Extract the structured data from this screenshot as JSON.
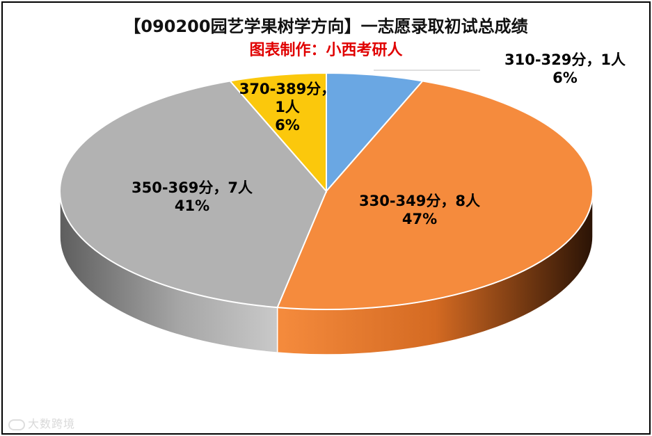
{
  "chart_data": {
    "type": "pie",
    "title": "【090200园艺学果树学方向】一志愿录取初试总成绩",
    "subtitle": "图表制作：小西考研人",
    "slices": [
      {
        "category": "310-329分",
        "count": 1,
        "count_label": "1人",
        "percent_label": "6%",
        "color": "#6aa7e3"
      },
      {
        "category": "330-349分",
        "count": 8,
        "count_label": "8人",
        "percent_label": "47%",
        "color": "#f58b3d"
      },
      {
        "category": "350-369分",
        "count": 7,
        "count_label": "7人",
        "percent_label": "41%",
        "color": "#b2b2b2"
      },
      {
        "category": "370-389分",
        "count": 1,
        "count_label": "1人",
        "percent_label": "6%",
        "color": "#fbc80c"
      }
    ],
    "style": "3d-pie",
    "legend": "none"
  },
  "watermark": {
    "icon": "weibo-icon",
    "text": "大数跨境"
  }
}
